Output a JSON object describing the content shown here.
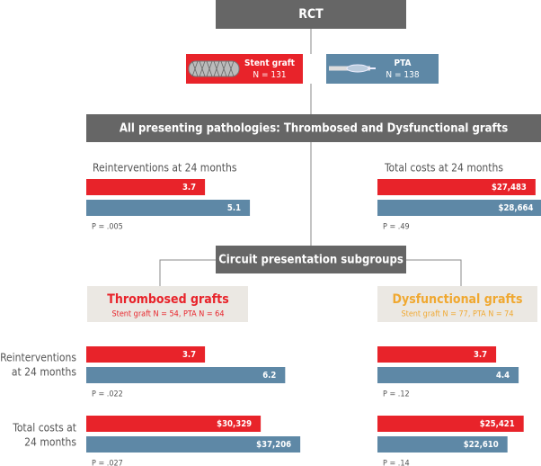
{
  "header": {
    "title": "RCT"
  },
  "arms": [
    {
      "name": "Stent graft",
      "n": "N = 131",
      "color": "#e8232a"
    },
    {
      "name": "PTA",
      "n": "N = 138",
      "color": "#5e88a6"
    }
  ],
  "banner": "All presenting pathologies: Thrombosed and Dysfunctional grafts",
  "overall": {
    "reinterventions": {
      "title": "Reinterventions at 24 months",
      "values": [
        3.7,
        5.1
      ],
      "p": "P = .005"
    },
    "costs": {
      "title": "Total costs at 24 months",
      "values": [
        27483,
        28664
      ],
      "value_labels": [
        "$27,483",
        "$28,664"
      ],
      "p": "P = .49"
    }
  },
  "subgroups_title": "Circuit presentation subgroups",
  "row_labels": [
    [
      "Reinterventions",
      "at 24 months"
    ],
    [
      "Total costs at",
      "24 months"
    ]
  ],
  "subgroups": [
    {
      "title": "Thrombosed grafts",
      "subtitle": "Stent graft N = 54, PTA N = 64",
      "color": "#e8232a",
      "reinterventions": {
        "values": [
          3.7,
          6.2
        ],
        "p": "P = .022"
      },
      "costs": {
        "values": [
          30329,
          37206
        ],
        "value_labels": [
          "$30,329",
          "$37,206"
        ],
        "p": "P = .027"
      }
    },
    {
      "title": "Dysfunctional grafts",
      "subtitle": "Stent graft N = 77, PTA N = 74",
      "color": "#f0a830",
      "reinterventions": {
        "values": [
          3.7,
          4.4
        ],
        "p": "P = .12"
      },
      "costs": {
        "values": [
          25421,
          22610
        ],
        "value_labels": [
          "$25,421",
          "$22,610"
        ],
        "p": "P = .14"
      }
    }
  ]
}
